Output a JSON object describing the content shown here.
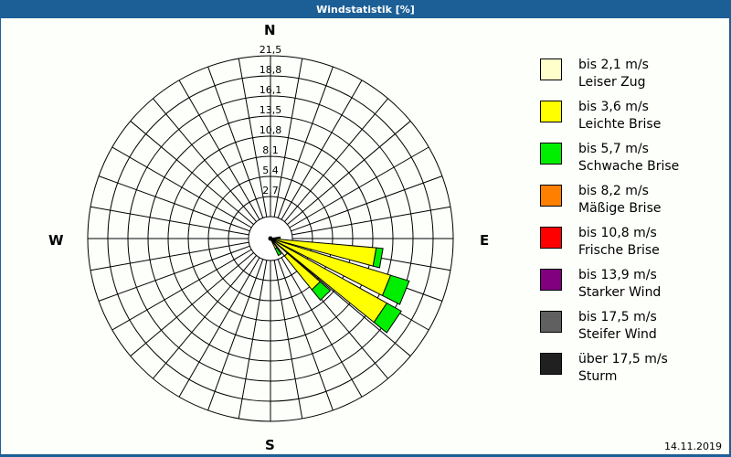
{
  "window": {
    "title": "Windstatistik [%]"
  },
  "directions": {
    "n": "N",
    "e": "E",
    "s": "S",
    "w": "W"
  },
  "footer": {
    "date": "14.11.2019"
  },
  "legend": [
    {
      "line1": "bis 2,1 m/s",
      "line2": "Leiser Zug",
      "color": "#ffffcc"
    },
    {
      "line1": "bis 3,6 m/s",
      "line2": "Leichte Brise",
      "color": "#ffff00"
    },
    {
      "line1": "bis 5,7 m/s",
      "line2": "Schwache Brise",
      "color": "#00ee00"
    },
    {
      "line1": "bis 8,2 m/s",
      "line2": "Mäßige Brise",
      "color": "#ff8000"
    },
    {
      "line1": "bis 10,8 m/s",
      "line2": "Frische Brise",
      "color": "#ff0000"
    },
    {
      "line1": "bis 13,9 m/s",
      "line2": "Starker Wind",
      "color": "#800080"
    },
    {
      "line1": "bis 17,5 m/s",
      "line2": "Steifer Wind",
      "color": "#606060"
    },
    {
      "line1": "über 17,5 m/s",
      "line2": "Sturm",
      "color": "#202020"
    }
  ],
  "chart_data": {
    "type": "windrose",
    "title": "Windstatistik [%]",
    "unit": "%",
    "radial_ticks": [
      "2,7",
      "5,4",
      "8,1",
      "10,8",
      "13,5",
      "16,1",
      "18,8",
      "21,5"
    ],
    "radial_max": 21.5,
    "sector_width_deg": 10,
    "categories": [
      "bis 2,1 m/s",
      "bis 3,6 m/s",
      "bis 5,7 m/s",
      "bis 8,2 m/s",
      "bis 10,8 m/s",
      "bis 13,9 m/s",
      "bis 17,5 m/s",
      "über 17,5 m/s"
    ],
    "sectors": [
      {
        "direction_deg": 85,
        "cumulative": [
          0.3,
          1.0,
          1.3
        ]
      },
      {
        "direction_deg": 100,
        "cumulative": [
          0.4,
          14.2,
          15.1
        ]
      },
      {
        "direction_deg": 112,
        "cumulative": [
          0.5,
          16.8,
          19.4
        ]
      },
      {
        "direction_deg": 124,
        "cumulative": [
          0.5,
          17.8,
          20.0
        ]
      },
      {
        "direction_deg": 136,
        "cumulative": [
          3.0,
          8.8,
          10.6
        ]
      },
      {
        "direction_deg": 150,
        "cumulative": [
          0.4,
          1.5,
          2.5
        ]
      }
    ]
  }
}
